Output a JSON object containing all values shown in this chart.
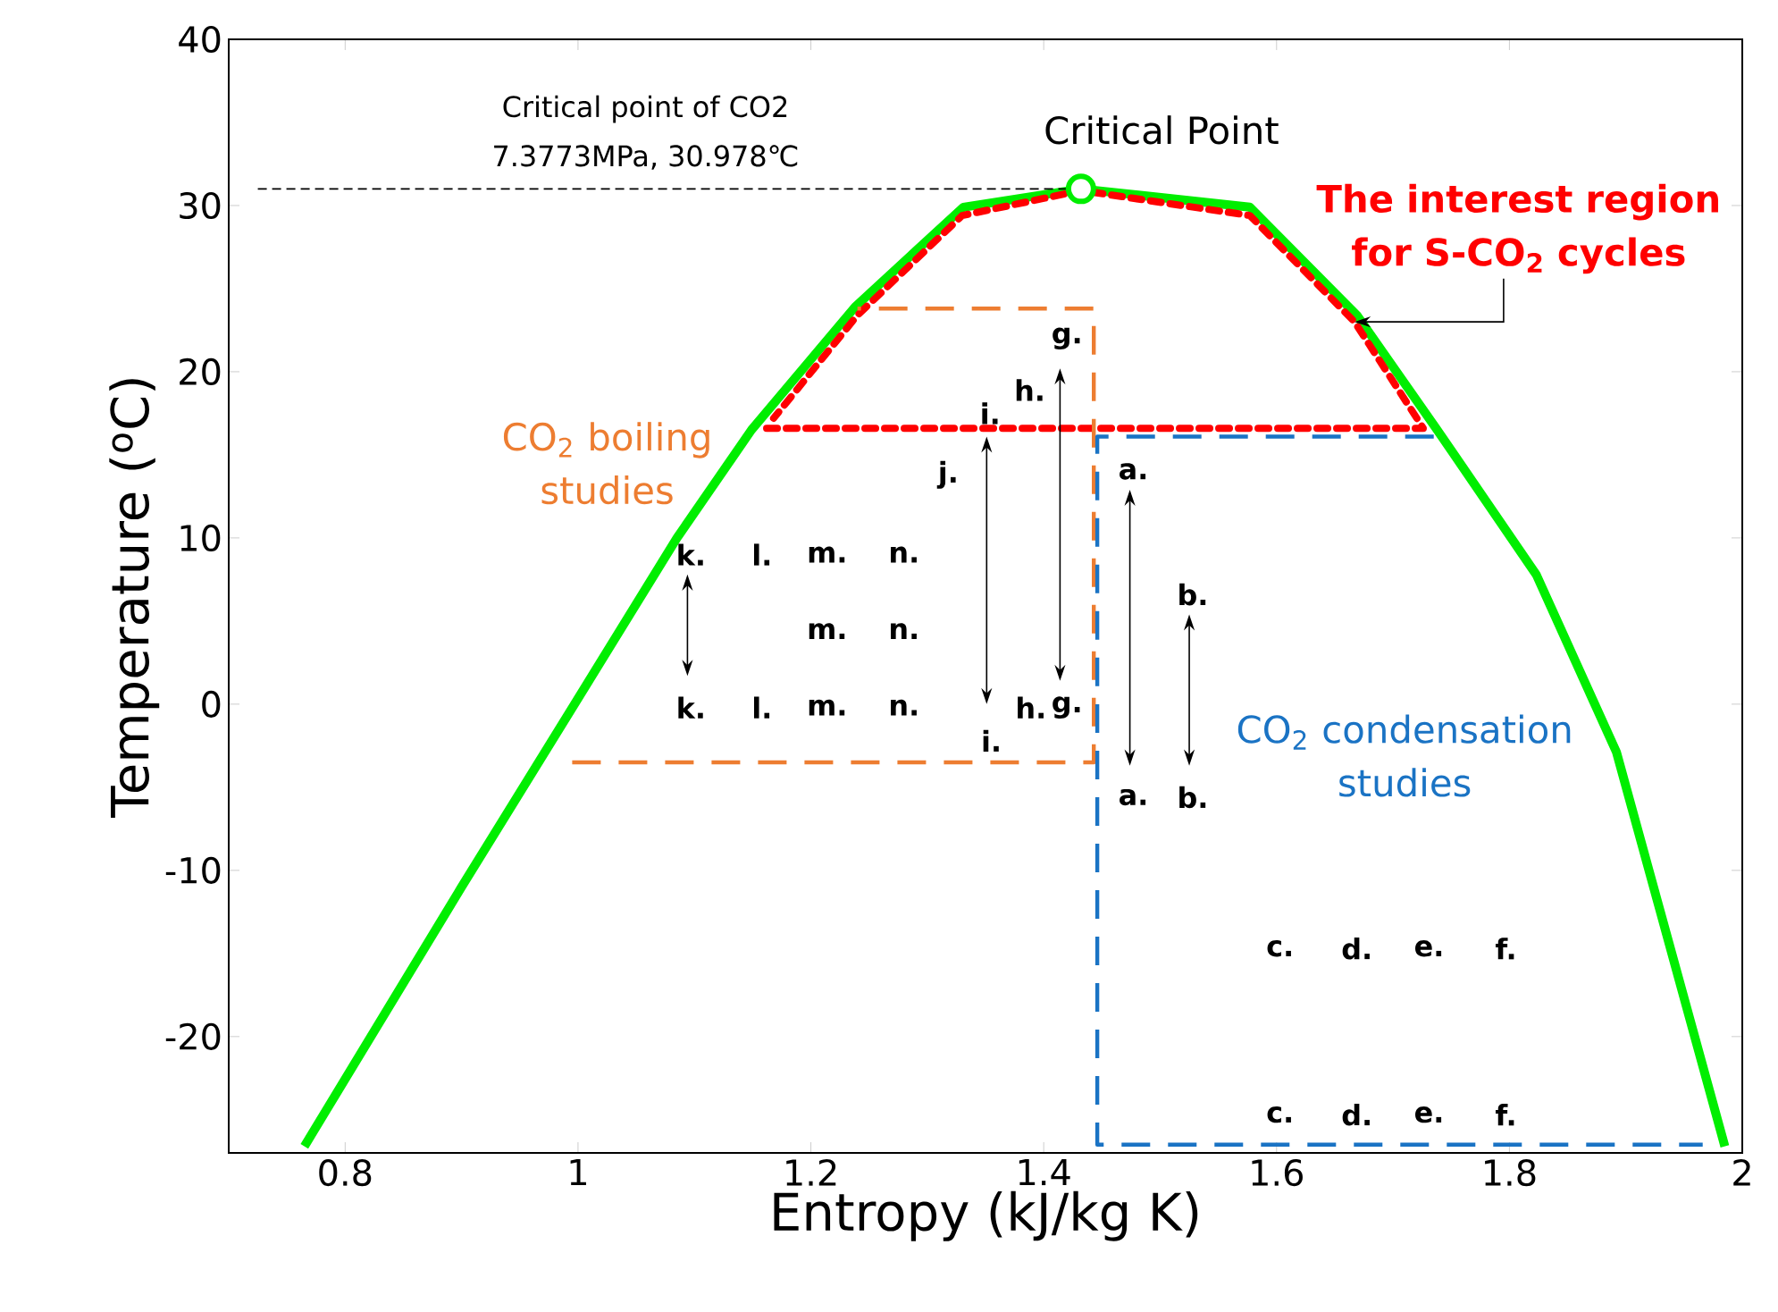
{
  "chart_data": {
    "type": "line",
    "xlabel": "Entropy (kJ/kg K)",
    "ylabel": "Temperature ($^{o}$C)",
    "xlim": [
      0.7,
      2.0
    ],
    "ylim": [
      -27,
      40
    ],
    "xticks": [
      0.8,
      1,
      1.2,
      1.4,
      1.6,
      1.8,
      2
    ],
    "yticks": [
      -20,
      -10,
      0,
      10,
      20,
      30,
      40
    ],
    "series": [
      {
        "color": "#00ee00",
        "line_style": "solid",
        "x": [
          0.765,
          0.9,
          0.997,
          1.085,
          1.149,
          1.238,
          1.331,
          1.432,
          1.577,
          1.669,
          1.738,
          1.823,
          1.892,
          1.985
        ],
        "values": [
          -26.6,
          -11,
          0,
          10,
          16.5,
          23.9,
          29.9,
          31,
          29.9,
          23.4,
          16.5,
          7.8,
          -2.9,
          -26.6
        ]
      },
      {
        "name": "The interest region for S-CO$_{2}$ cycles",
        "color": "#ff0000",
        "line_style": "dotted",
        "x": [
          1.162,
          1.726,
          1.667,
          1.577,
          1.432,
          1.33,
          1.24,
          1.168
        ],
        "values": [
          16.6,
          16.6,
          23,
          29.4,
          30.9,
          29.4,
          23.4,
          17.2
        ]
      },
      {
        "name": "CO$_{2}$ boiling studies",
        "color": "#ed7d31",
        "line_style": "dashed",
        "x": [
          0.995,
          1.443,
          1.443,
          1.24
        ],
        "values": [
          -3.5,
          -3.5,
          23.8,
          23.8
        ]
      },
      {
        "name": "CO$_{2}$ condensation studies",
        "color": "#1a73c4",
        "line_style": "dashed",
        "x": [
          1.735,
          1.446,
          1.446,
          1.966
        ],
        "values": [
          16.1,
          16.1,
          -26.5,
          -26.5
        ]
      },
      {
        "color": "#000000",
        "line_style": "dashed",
        "x": [
          0.725,
          1.42
        ],
        "values": [
          31,
          31
        ]
      },
      {
        "type": "scatter",
        "color": "#00ee00",
        "x": [
          1.432
        ],
        "values": [
          31
        ]
      }
    ],
    "annotations": [
      "Critical point of CO2",
      "7.3773MPa, 30.978℃",
      {
        "text": "Critical Point",
        "x": 1.432,
        "y": 31
      },
      "g.",
      "h.",
      "i.",
      "j.",
      "a.",
      "b.",
      "k.",
      "l.",
      "m.",
      "n.",
      "m.",
      "n.",
      "k.",
      "l.",
      "m.",
      "n.",
      "i.",
      "h.",
      "g.",
      "a.",
      "b.",
      "c.",
      "d.",
      "e.",
      "f.",
      "c.",
      "d.",
      "e.",
      "f."
    ]
  }
}
